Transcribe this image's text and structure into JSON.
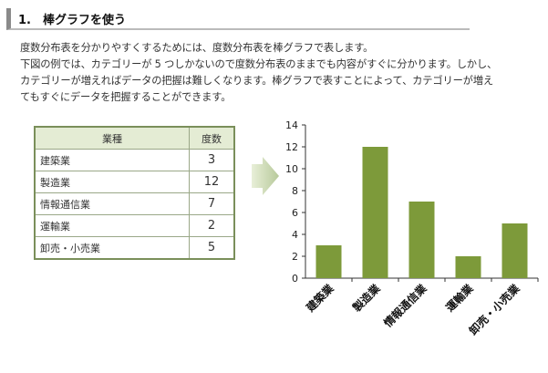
{
  "heading": "1.　棒グラフを使う",
  "paragraphs": [
    "度数分布表を分かりやすくするためには、度数分布表を棒グラフで表します。",
    "下図の例では、カテゴリーが 5 つしかないので度数分布表のままでも内容がすぐに分かります。しかし、",
    "カテゴリーが増えればデータの把握は難しくなります。棒グラフで表すことによって、カテゴリーが増え",
    "てもすぐにデータを把握することができます。"
  ],
  "table": {
    "headers": [
      "業種",
      "度数"
    ],
    "rows": [
      [
        "建築業",
        "3"
      ],
      [
        "製造業",
        "12"
      ],
      [
        "情報通信業",
        "7"
      ],
      [
        "運輸業",
        "2"
      ],
      [
        "卸売・小売業",
        "5"
      ]
    ]
  },
  "chart_data": {
    "type": "bar",
    "categories": [
      "建築業",
      "製造業",
      "情報通信業",
      "運輸業",
      "卸売・小売業"
    ],
    "values": [
      3,
      12,
      7,
      2,
      5
    ],
    "ylim": [
      0,
      14
    ],
    "yticks": [
      "0",
      "2",
      "4",
      "6",
      "8",
      "10",
      "12",
      "14"
    ],
    "bar_color": "#7d9a3a",
    "grid": false
  },
  "colors": {
    "accent": "#7d9a3a",
    "table_header": "#e4ecd4"
  }
}
